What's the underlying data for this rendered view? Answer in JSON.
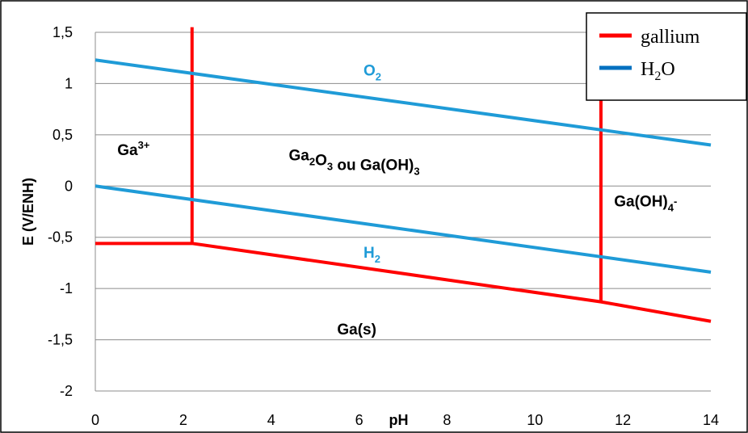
{
  "chart_data": {
    "type": "line",
    "xlabel": "pH",
    "ylabel": "E (V/ENH)",
    "xlim": [
      0,
      14
    ],
    "ylim": [
      -2,
      1.5
    ],
    "xticks": [
      0,
      2,
      4,
      6,
      8,
      10,
      12,
      14
    ],
    "yticks": [
      1.5,
      1,
      0.5,
      0,
      -0.5,
      -1,
      -1.5,
      -2
    ],
    "ytick_labels": [
      "1,5",
      "1",
      "0,5",
      "0",
      "-0,5",
      "-1",
      "-1,5",
      "-2"
    ],
    "grid": true,
    "legend_position": "top-right",
    "colors": {
      "gallium": "#ff0000",
      "water": "#1f9bd7",
      "legend_water": "#0070c0"
    },
    "legend": [
      {
        "key": "gallium",
        "label": "gallium"
      },
      {
        "key": "water",
        "label": "H",
        "sub": "2",
        "tail": "O"
      }
    ],
    "series": [
      {
        "key": "gallium",
        "segments": [
          [
            [
              0,
              -0.56
            ],
            [
              2.2,
              -0.56
            ],
            [
              11.5,
              -1.13
            ],
            [
              14,
              -1.32
            ]
          ],
          [
            [
              2.2,
              -0.56
            ],
            [
              2.2,
              1.55
            ]
          ],
          [
            [
              11.5,
              -1.13
            ],
            [
              11.5,
              1.55
            ]
          ]
        ]
      },
      {
        "key": "water",
        "segments": [
          [
            [
              0,
              1.23
            ],
            [
              14,
              0.4
            ]
          ],
          [
            [
              0,
              0
            ],
            [
              14,
              -0.84
            ]
          ]
        ]
      }
    ],
    "labels": [
      {
        "id": "ga3",
        "base": "Ga",
        "sup": "3+",
        "x": 0.5,
        "y": 0.3,
        "color": "text"
      },
      {
        "id": "ga2o3",
        "parts": [
          [
            "Ga",
            ""
          ],
          [
            "2",
            "sub"
          ],
          [
            "O",
            ""
          ],
          [
            "3",
            "sub"
          ],
          [
            " ou Ga(OH)",
            ""
          ],
          [
            "3",
            "sub"
          ]
        ],
        "x": 4.4,
        "y": 0.25,
        "color": "text"
      },
      {
        "id": "gaoh4",
        "parts": [
          [
            "Ga(OH)",
            ""
          ],
          [
            "4",
            "sub"
          ],
          [
            "-",
            "sup"
          ]
        ],
        "x": 11.8,
        "y": -0.2,
        "color": "text"
      },
      {
        "id": "gas",
        "parts": [
          [
            "Ga(s)",
            ""
          ]
        ],
        "x": 5.5,
        "y": -1.45,
        "color": "text"
      },
      {
        "id": "o2",
        "parts": [
          [
            "O",
            ""
          ],
          [
            "2",
            "sub"
          ]
        ],
        "x": 6.1,
        "y": 1.08,
        "color": "water"
      },
      {
        "id": "h2",
        "parts": [
          [
            "H",
            ""
          ],
          [
            "2",
            "sub"
          ]
        ],
        "x": 6.1,
        "y": -0.7,
        "color": "water"
      }
    ]
  }
}
